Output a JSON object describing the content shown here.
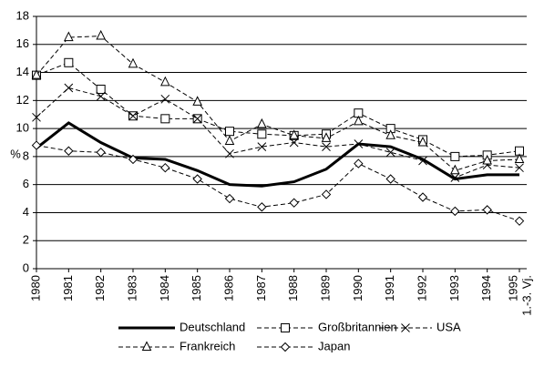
{
  "chart_data": {
    "type": "line",
    "y_label": "%",
    "categories": [
      "1980",
      "1981",
      "1982",
      "1983",
      "1984",
      "1985",
      "1986",
      "1987",
      "1988",
      "1989",
      "1990",
      "1991",
      "1992",
      "1993",
      "1994",
      "1995"
    ],
    "annotation": "1.-3. Vj.",
    "series": [
      {
        "name": "Deutschland",
        "color": "#000000",
        "line_style": "solid-thick",
        "marker": "none",
        "values": [
          8.6,
          10.4,
          9.0,
          7.9,
          7.8,
          7.0,
          6.0,
          5.9,
          6.2,
          7.1,
          8.9,
          8.7,
          7.8,
          6.4,
          6.7,
          6.7
        ]
      },
      {
        "name": "Großbritannien",
        "color": "#000000",
        "line_style": "dashed",
        "marker": "square",
        "values": [
          13.8,
          14.7,
          12.8,
          10.9,
          10.7,
          10.7,
          9.8,
          9.6,
          9.5,
          9.6,
          11.1,
          10.0,
          9.2,
          8.0,
          8.1,
          8.4
        ]
      },
      {
        "name": "USA",
        "color": "#000000",
        "line_style": "dashed",
        "marker": "x",
        "values": [
          10.8,
          12.9,
          12.3,
          10.9,
          12.1,
          10.7,
          8.2,
          8.7,
          9.0,
          8.7,
          8.9,
          8.3,
          7.7,
          6.5,
          7.4,
          7.2
        ]
      },
      {
        "name": "Frankreich",
        "color": "#000000",
        "line_style": "dashed",
        "marker": "triangle",
        "values": [
          13.8,
          16.5,
          16.6,
          14.6,
          13.3,
          11.9,
          9.1,
          10.3,
          9.5,
          9.3,
          10.5,
          9.5,
          9.0,
          7.0,
          7.7,
          7.8
        ]
      },
      {
        "name": "Japan",
        "color": "#000000",
        "line_style": "dashed",
        "marker": "diamond",
        "values": [
          8.8,
          8.4,
          8.3,
          7.8,
          7.2,
          6.4,
          5.0,
          4.4,
          4.7,
          5.3,
          7.5,
          6.4,
          5.1,
          4.1,
          4.2,
          3.4
        ]
      }
    ],
    "ylim": [
      0,
      18
    ],
    "yticks": [
      0,
      2,
      4,
      6,
      8,
      10,
      12,
      14,
      16,
      18
    ],
    "grid": true
  }
}
